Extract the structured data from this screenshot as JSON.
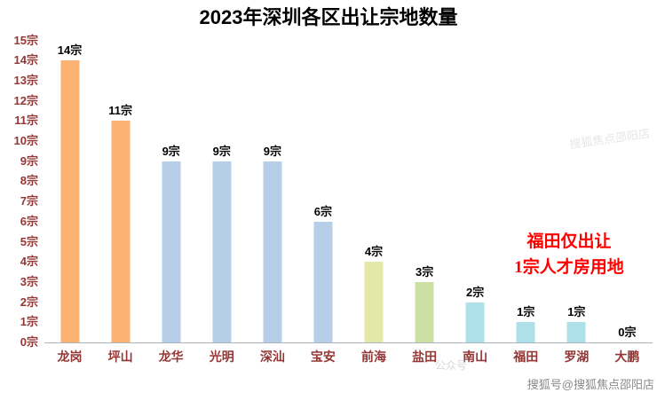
{
  "title": "2023年深圳各区出让宗地数量",
  "chart_data": {
    "type": "bar",
    "title": "2023年深圳各区出让宗地数量",
    "categories": [
      "龙岗",
      "坪山",
      "龙华",
      "光明",
      "深汕",
      "宝安",
      "前海",
      "盐田",
      "南山",
      "福田",
      "罗湖",
      "大鹏"
    ],
    "values": [
      14,
      11,
      9,
      9,
      9,
      6,
      4,
      3,
      2,
      1,
      1,
      0
    ],
    "value_labels": [
      "14宗",
      "11宗",
      "9宗",
      "9宗",
      "9宗",
      "6宗",
      "4宗",
      "3宗",
      "2宗",
      "1宗",
      "1宗",
      "0宗"
    ],
    "bar_colors": [
      "#FBB272",
      "#FBB272",
      "#B7CEE9",
      "#B7CEE9",
      "#B7CEE9",
      "#B7CEE9",
      "#E3E8A9",
      "#CCE0A4",
      "#AEE0EA",
      "#AEE0EA",
      "#AEE0EA",
      "#AEE0EA"
    ],
    "y_ticks": [
      "0宗",
      "1宗",
      "2宗",
      "3宗",
      "4宗",
      "5宗",
      "6宗",
      "7宗",
      "8宗",
      "9宗",
      "10宗",
      "11宗",
      "12宗",
      "13宗",
      "14宗",
      "15宗"
    ],
    "ylim": [
      0,
      15
    ],
    "xlabel": "",
    "ylabel": "",
    "grid": false,
    "legend": false,
    "annotation": {
      "lines": [
        "福田仅出让",
        "1宗人才房用地"
      ],
      "color": "#ff0000"
    }
  },
  "colors": {
    "axis_label": "#943634",
    "title": "#000000",
    "annotation": "#ff0000"
  },
  "watermarks": {
    "bottom_right": "搜狐号@搜狐焦点邵阳店",
    "faint_center": "公众号",
    "faint_right": "搜狐焦点邵阳店"
  }
}
